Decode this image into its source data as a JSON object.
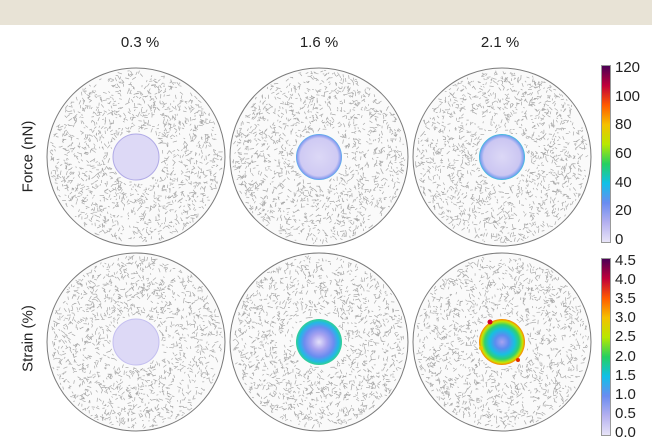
{
  "columns": [
    "0.3 %",
    "1.6 %",
    "2.1 %"
  ],
  "rows": [
    "Force (nN)",
    "Strain (%)"
  ],
  "colorbars": {
    "force": {
      "ticks": [
        "120",
        "100",
        "80",
        "60",
        "40",
        "20",
        "0"
      ],
      "colors": [
        "#4b0055",
        "#c0003a",
        "#ff5a00",
        "#f5c000",
        "#b8e800",
        "#25d060",
        "#10c0e8",
        "#6a8cf0",
        "#b4b0f0",
        "#e8e4f8"
      ]
    },
    "strain": {
      "ticks": [
        "4.5",
        "4.0",
        "3.5",
        "3.0",
        "2.5",
        "2.0",
        "1.5",
        "1.0",
        "0.5",
        "0.0"
      ],
      "colors": [
        "#4b0055",
        "#c0003a",
        "#ff5a00",
        "#f5c000",
        "#b8e800",
        "#25d060",
        "#10c0e8",
        "#6a8cf0",
        "#b4b0f0",
        "#e8e4f8"
      ]
    }
  },
  "colors": {
    "inclusion_fill": "#ddd9f6",
    "inclusion_edge": "#8e88d6",
    "fiber": "#a8a8a8",
    "outline": "#7a7a7a"
  }
}
